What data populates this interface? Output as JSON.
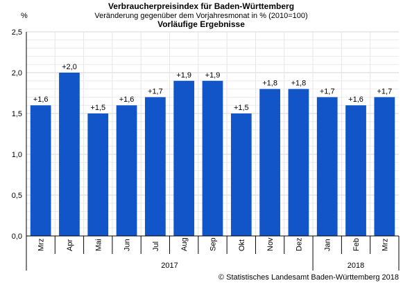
{
  "chart_data": {
    "type": "bar",
    "title": "Verbraucherpreisindex für Baden-Württemberg",
    "subtitle": "Veränderung gegenüber dem Vorjahresmonat in % (2010=100)",
    "subtitle2": "Vorläufige Ergebnisse",
    "ylabel": "%",
    "ylim": [
      0,
      2.5
    ],
    "yticks": [
      "0,0",
      "0,5",
      "1,0",
      "1,5",
      "2,0",
      "2,5"
    ],
    "grid": true,
    "categories": [
      "Mrz",
      "Apr",
      "Mai",
      "Jun",
      "Jul",
      "Aug",
      "Sep",
      "Okt",
      "Nov",
      "Dez",
      "Jan",
      "Feb",
      "Mrz"
    ],
    "values": [
      1.6,
      2.0,
      1.5,
      1.6,
      1.7,
      1.9,
      1.9,
      1.5,
      1.8,
      1.8,
      1.7,
      1.6,
      1.7
    ],
    "data_labels": [
      "+1,6",
      "+2,0",
      "+1,5",
      "+1,6",
      "+1,7",
      "+1,9",
      "+1,9",
      "+1,5",
      "+1,8",
      "+1,8",
      "+1,7",
      "+1,6",
      "+1,7"
    ],
    "year_groups": [
      {
        "label": "2017",
        "count": 10
      },
      {
        "label": "2018",
        "count": 3
      }
    ],
    "bar_color": "#1155c8"
  },
  "footer": {
    "copyright": "© Statistisches Landesamt Baden-Württemberg 2018"
  }
}
